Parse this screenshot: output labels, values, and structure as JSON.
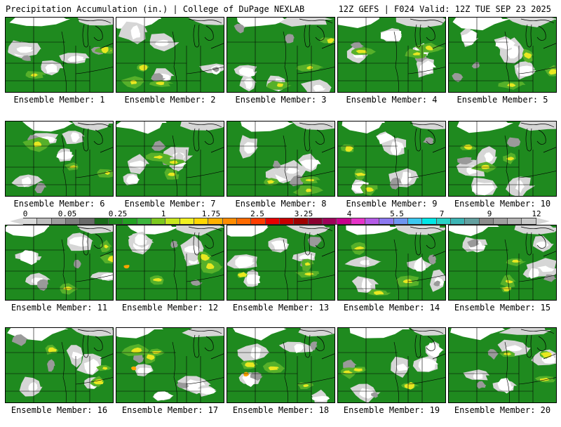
{
  "header": {
    "title": "Precipitation Accumulation (in.) | College of DuPage NEXLAB",
    "valid": "12Z GEFS | F024 Valid: 12Z TUE SEP 23 2025"
  },
  "colorbar": {
    "labels": [
      "0",
      "0.05",
      "0.25",
      "1",
      "1.75",
      "2.5",
      "3.25",
      "4",
      "5.5",
      "7",
      "9",
      "12"
    ],
    "colors": [
      "#d9d9d9",
      "#bdbdbd",
      "#9e9e9e",
      "#7f7f7f",
      "#6a6a6a",
      "#1a6b1a",
      "#1f8a1f",
      "#23a123",
      "#3cb43c",
      "#7cc81e",
      "#c8e61e",
      "#f0f020",
      "#ffd700",
      "#ffb000",
      "#ff8c00",
      "#ff6a00",
      "#ff3c00",
      "#e60000",
      "#c80000",
      "#a00000",
      "#8b0030",
      "#a0005a",
      "#c8008c",
      "#e632c8",
      "#b45ae6",
      "#8c78f0",
      "#6e96f0",
      "#3cc8f0",
      "#00e6e6",
      "#28d2c8",
      "#3cb4b4",
      "#64a0a0",
      "#8c8c8c",
      "#a0a0a0",
      "#b4b4b4",
      "#c8c8c8"
    ]
  },
  "members": [
    {
      "label": "Ensemble Member: 1"
    },
    {
      "label": "Ensemble Member: 2"
    },
    {
      "label": "Ensemble Member: 3"
    },
    {
      "label": "Ensemble Member: 4"
    },
    {
      "label": "Ensemble Member: 5"
    },
    {
      "label": "Ensemble Member: 6"
    },
    {
      "label": "Ensemble Member: 7"
    },
    {
      "label": "Ensemble Member: 8"
    },
    {
      "label": "Ensemble Member: 9"
    },
    {
      "label": "Ensemble Member: 10"
    },
    {
      "label": "Ensemble Member: 11"
    },
    {
      "label": "Ensemble Member: 12"
    },
    {
      "label": "Ensemble Member: 13"
    },
    {
      "label": "Ensemble Member: 14"
    },
    {
      "label": "Ensemble Member: 15"
    },
    {
      "label": "Ensemble Member: 16"
    },
    {
      "label": "Ensemble Member: 17"
    },
    {
      "label": "Ensemble Member: 18"
    },
    {
      "label": "Ensemble Member: 19"
    },
    {
      "label": "Ensemble Member: 20"
    }
  ],
  "map_colors": {
    "no_precip": "#ffffff",
    "trace_light": "#d6d6d6",
    "trace_dark": "#9a9a9a",
    "green": "#1f8a1f",
    "green_light": "#56b02a",
    "yellow": "#e8e820",
    "orange": "#ffa500",
    "red": "#e03020",
    "boundary": "#000000"
  }
}
